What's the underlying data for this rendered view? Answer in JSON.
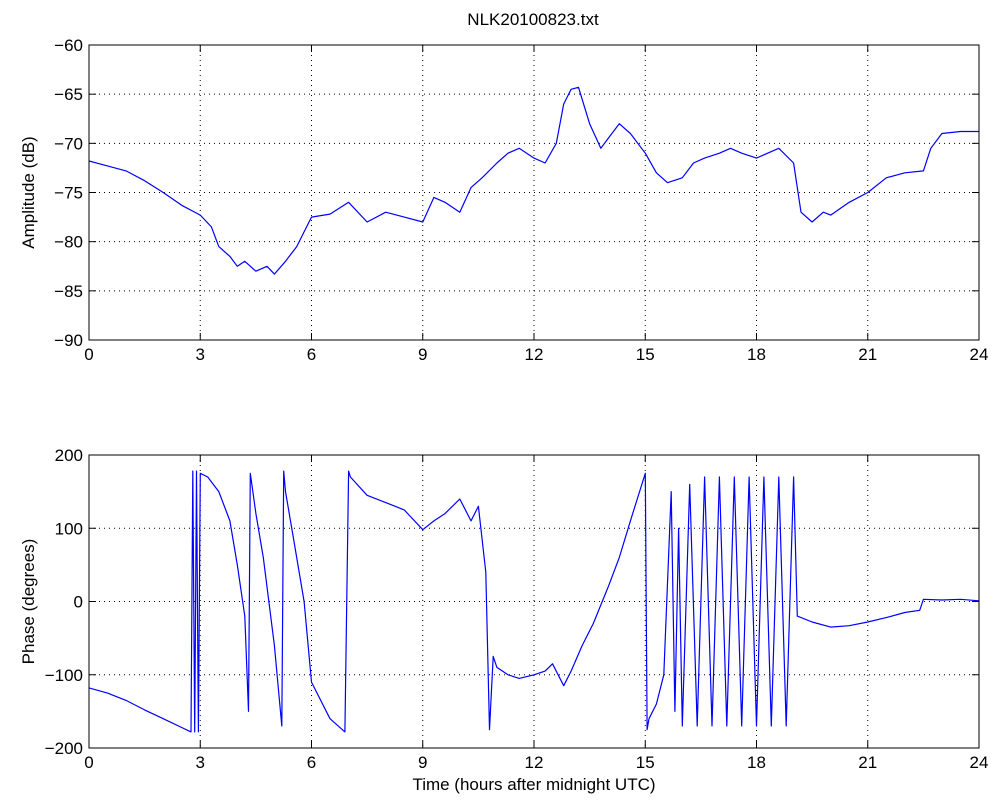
{
  "figure": {
    "title": "NLK20100823.txt",
    "line_color": "#0000ff"
  },
  "chart_data": [
    {
      "type": "line",
      "title": "NLK20100823.txt",
      "xlabel": "",
      "ylabel": "Amplitude (dB)",
      "xlim": [
        0,
        24
      ],
      "ylim": [
        -90,
        -60
      ],
      "xticks": [
        0,
        3,
        6,
        9,
        12,
        15,
        18,
        21,
        24
      ],
      "yticks": [
        -90,
        -85,
        -80,
        -75,
        -70,
        -65,
        -60
      ],
      "grid": true,
      "series": [
        {
          "x": [
            0,
            0.5,
            1,
            1.5,
            2,
            2.5,
            3,
            3.3,
            3.5,
            3.8,
            4,
            4.2,
            4.5,
            4.8,
            5,
            5.3,
            5.6,
            6,
            6.5,
            7,
            7.5,
            8,
            8.5,
            9,
            9.3,
            9.6,
            10,
            10.3,
            10.6,
            11,
            11.3,
            11.6,
            12,
            12.3,
            12.6,
            12.8,
            13,
            13.2,
            13.5,
            13.8,
            14,
            14.3,
            14.6,
            15,
            15.3,
            15.6,
            16,
            16.3,
            16.6,
            17,
            17.3,
            17.6,
            18,
            18.3,
            18.6,
            19,
            19.2,
            19.5,
            19.8,
            20,
            20.5,
            21,
            21.5,
            22,
            22.5,
            22.7,
            23,
            23.5,
            24
          ],
          "y": [
            -71.8,
            -72.3,
            -72.8,
            -73.8,
            -75,
            -76.3,
            -77.3,
            -78.5,
            -80.5,
            -81.5,
            -82.5,
            -82,
            -83,
            -82.5,
            -83.3,
            -82,
            -80.5,
            -77.5,
            -77.2,
            -76,
            -78,
            -77,
            -77.5,
            -78,
            -75.5,
            -76,
            -77,
            -74.5,
            -73.5,
            -72,
            -71,
            -70.5,
            -71.5,
            -72,
            -70,
            -66,
            -64.5,
            -64.3,
            -68,
            -70.5,
            -69.5,
            -68,
            -69,
            -71,
            -73,
            -74,
            -73.5,
            -72,
            -71.5,
            -71,
            -70.5,
            -71,
            -71.5,
            -71,
            -70.5,
            -72,
            -77,
            -78,
            -77,
            -77.3,
            -76,
            -75,
            -73.5,
            -73,
            -72.8,
            -70.5,
            -69,
            -68.8,
            -68.8
          ]
        }
      ]
    },
    {
      "type": "line",
      "title": "",
      "xlabel": "Time (hours after midnight UTC)",
      "ylabel": "Phase (degrees)",
      "xlim": [
        0,
        24
      ],
      "ylim": [
        -200,
        200
      ],
      "xticks": [
        0,
        3,
        6,
        9,
        12,
        15,
        18,
        21,
        24
      ],
      "yticks": [
        -200,
        -100,
        0,
        100,
        200
      ],
      "grid": true,
      "series": [
        {
          "x": [
            0,
            0.5,
            1,
            1.5,
            2,
            2.5,
            2.75,
            2.8,
            2.85,
            2.9,
            2.95,
            3.0,
            3.2,
            3.5,
            3.8,
            4.0,
            4.2,
            4.3,
            4.35,
            4.5,
            4.7,
            5.0,
            5.2,
            5.25,
            5.3,
            5.5,
            5.8,
            6.0,
            6.5,
            6.9,
            7.0,
            7.05,
            7.5,
            8,
            8.5,
            9,
            9.3,
            9.6,
            10,
            10.3,
            10.5,
            10.7,
            10.8,
            10.9,
            11.0,
            11.3,
            11.6,
            12,
            12.3,
            12.5,
            12.8,
            13.0,
            13.3,
            13.6,
            14,
            14.3,
            14.6,
            15.0,
            15.05,
            15.1,
            15.3,
            15.5,
            15.7,
            15.8,
            15.9,
            16.0,
            16.2,
            16.4,
            16.6,
            16.8,
            17.0,
            17.2,
            17.4,
            17.6,
            17.8,
            18.0,
            18.2,
            18.4,
            18.6,
            18.8,
            19.0,
            19.1,
            19.5,
            20,
            20.5,
            21,
            21.5,
            22,
            22.4,
            22.5,
            23,
            23.5,
            24
          ],
          "y": [
            -118,
            -125,
            -135,
            -148,
            -160,
            -172,
            -178,
            178,
            -178,
            178,
            -178,
            175,
            170,
            150,
            110,
            50,
            -20,
            -150,
            175,
            120,
            60,
            -60,
            -170,
            178,
            150,
            90,
            0,
            -110,
            -160,
            -178,
            178,
            170,
            145,
            135,
            125,
            98,
            110,
            120,
            140,
            110,
            130,
            40,
            -175,
            -75,
            -90,
            -100,
            -105,
            -100,
            -95,
            -85,
            -115,
            -95,
            -60,
            -30,
            20,
            60,
            110,
            175,
            -175,
            -160,
            -140,
            -100,
            150,
            -150,
            100,
            -170,
            160,
            -170,
            170,
            -170,
            170,
            -170,
            170,
            -170,
            170,
            -170,
            170,
            -170,
            170,
            -170,
            170,
            -20,
            -28,
            -35,
            -33,
            -28,
            -22,
            -15,
            -12,
            3,
            2,
            3,
            1
          ]
        }
      ]
    }
  ]
}
